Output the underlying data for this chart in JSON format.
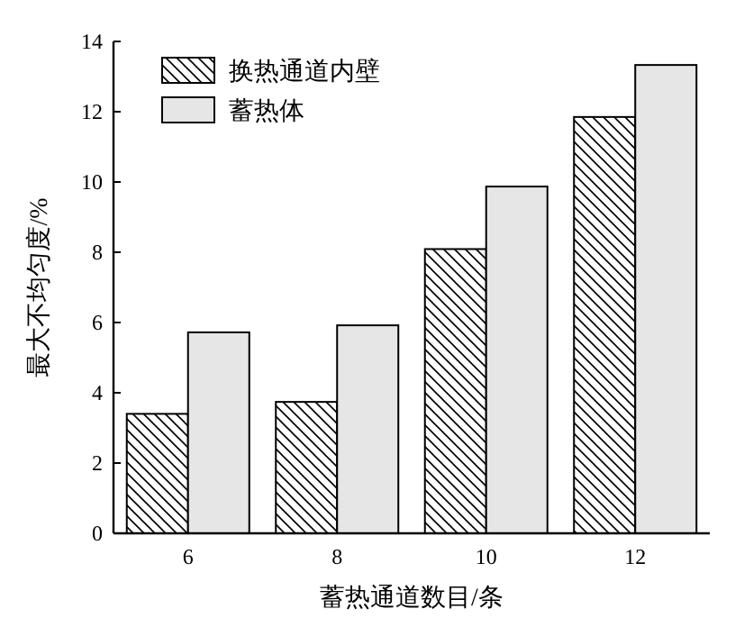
{
  "chart_data": {
    "type": "bar",
    "xlabel": "蓄热通道数目/条",
    "ylabel": "最大不均匀度/%",
    "categories": [
      "6",
      "8",
      "10",
      "12"
    ],
    "series": [
      {
        "name": "换热通道内壁",
        "color": "#000000",
        "values": [
          3.4,
          3.74,
          8.09,
          11.85
        ]
      },
      {
        "name": "蓄热体",
        "color": "#e6e6e6",
        "values": [
          5.72,
          5.92,
          9.87,
          13.33
        ]
      }
    ],
    "ylim": [
      0,
      14
    ],
    "yticks": [
      0,
      2,
      4,
      6,
      8,
      10,
      12,
      14
    ],
    "grid": false,
    "legend": "top left"
  }
}
